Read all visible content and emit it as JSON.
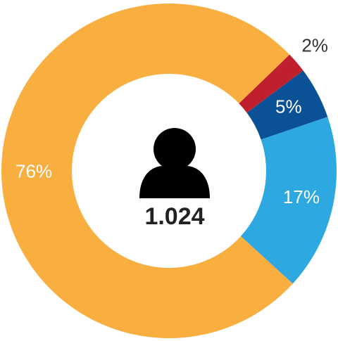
{
  "chart_data": {
    "type": "donut",
    "values": [
      2,
      5,
      17,
      76
    ],
    "value_labels": [
      "2%",
      "5%",
      "17%",
      "76%"
    ],
    "colors": [
      "#c0202e",
      "#0a5196",
      "#2ea8e0",
      "#f9ae40"
    ],
    "center_label": "1.024"
  }
}
